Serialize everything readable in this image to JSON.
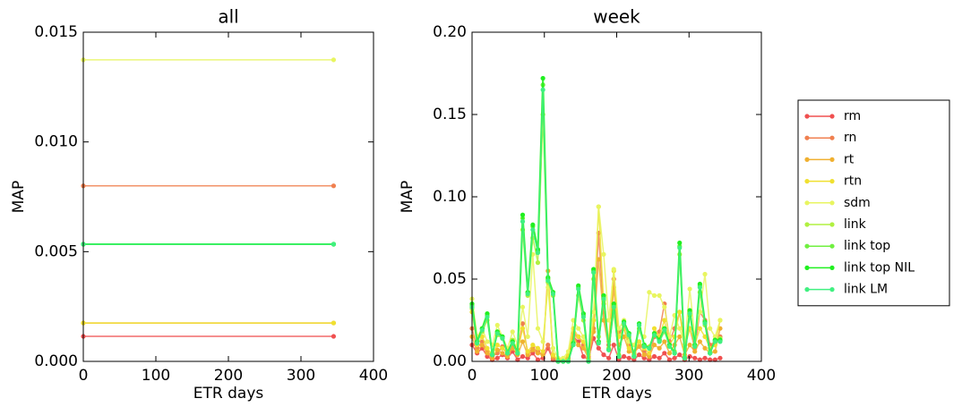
{
  "chart_data": [
    {
      "type": "line",
      "title": "all",
      "x_label": "ETR days",
      "y_label": "MAP",
      "xlim": [
        0,
        400
      ],
      "xticks": [
        0,
        100,
        200,
        300,
        400
      ],
      "ylim": [
        0,
        0.015
      ],
      "yticks": [
        {
          "value": 0,
          "label": "0.000"
        },
        {
          "value": 0.005,
          "label": "0.005"
        },
        {
          "value": 0.01,
          "label": "0.010"
        },
        {
          "value": 0.015,
          "label": "0.015"
        }
      ],
      "x": [
        0,
        345
      ],
      "series": [
        {
          "color": "#f05050",
          "values": [
            0.00114,
            0.00114
          ]
        },
        {
          "color": "#f08050",
          "values": [
            0.008,
            0.008
          ]
        },
        {
          "color": "#f0b030",
          "values": [
            0.00175,
            0.00175
          ]
        },
        {
          "color": "#f0e030",
          "values": [
            0.00175,
            0.00175
          ]
        },
        {
          "color": "#e8f560",
          "values": [
            0.01374,
            0.01374
          ]
        },
        {
          "color": "#b0f040",
          "values": [
            0.00534,
            0.00534
          ]
        },
        {
          "color": "#70f040",
          "values": [
            0.00534,
            0.00534
          ]
        },
        {
          "color": "#20f020",
          "values": [
            0.00534,
            0.00534
          ]
        },
        {
          "color": "#40f080",
          "values": [
            0.00534,
            0.00534
          ]
        }
      ]
    },
    {
      "type": "line",
      "title": "week",
      "x_label": "ETR days",
      "y_label": "MAP",
      "legend": "right",
      "xlim": [
        0,
        400
      ],
      "xticks": [
        0,
        100,
        200,
        300,
        400
      ],
      "ylim": [
        0,
        0.2
      ],
      "yticks": [
        {
          "value": 0,
          "label": "0.00"
        },
        {
          "value": 0.05,
          "label": "0.05"
        },
        {
          "value": 0.1,
          "label": "0.10"
        },
        {
          "value": 0.15,
          "label": "0.15"
        },
        {
          "value": 0.2,
          "label": "0.20"
        }
      ],
      "x": [
        0,
        7,
        14,
        21,
        28,
        35,
        42,
        49,
        56,
        63,
        70,
        77,
        84,
        91,
        98,
        105,
        112,
        119,
        126,
        133,
        140,
        147,
        154,
        161,
        168,
        175,
        182,
        189,
        196,
        203,
        210,
        217,
        224,
        231,
        238,
        245,
        252,
        259,
        266,
        273,
        280,
        287,
        294,
        301,
        308,
        315,
        322,
        329,
        336,
        343
      ],
      "series": [
        {
          "name": "rm",
          "color": "#f05050",
          "values": [
            0.01,
            0.005,
            0.008,
            0.003,
            0.001,
            0.002,
            0.004,
            0.002,
            0.006,
            0.001,
            0.003,
            0.002,
            0.005,
            0.001,
            0.002,
            0.008,
            0.001,
            0.0,
            0.0,
            0.001,
            0.015,
            0.012,
            0.003,
            0.001,
            0.014,
            0.008,
            0.004,
            0.002,
            0.01,
            0.001,
            0.003,
            0.002,
            0.001,
            0.004,
            0.002,
            0.001,
            0.003,
            0.002,
            0.005,
            0.001,
            0.002,
            0.004,
            0.001,
            0.003,
            0.002,
            0.001,
            0.002,
            0.001,
            0.001,
            0.002
          ]
        },
        {
          "name": "rn",
          "color": "#f08050",
          "values": [
            0.02,
            0.008,
            0.012,
            0.006,
            0.003,
            0.005,
            0.009,
            0.004,
            0.01,
            0.007,
            0.023,
            0.005,
            0.008,
            0.006,
            0.004,
            0.01,
            0.002,
            0.0,
            0.001,
            0.002,
            0.017,
            0.015,
            0.01,
            0.003,
            0.02,
            0.078,
            0.03,
            0.01,
            0.05,
            0.018,
            0.02,
            0.01,
            0.004,
            0.012,
            0.006,
            0.003,
            0.015,
            0.018,
            0.035,
            0.012,
            0.02,
            0.03,
            0.01,
            0.02,
            0.008,
            0.03,
            0.025,
            0.01,
            0.012,
            0.015
          ]
        },
        {
          "name": "rt",
          "color": "#f0b030",
          "values": [
            0.015,
            0.006,
            0.01,
            0.005,
            0.002,
            0.007,
            0.005,
            0.003,
            0.008,
            0.004,
            0.012,
            0.004,
            0.007,
            0.005,
            0.004,
            0.055,
            0.003,
            0.001,
            0.0,
            0.003,
            0.015,
            0.01,
            0.008,
            0.002,
            0.018,
            0.062,
            0.025,
            0.008,
            0.045,
            0.01,
            0.015,
            0.006,
            0.005,
            0.009,
            0.004,
            0.003,
            0.01,
            0.008,
            0.012,
            0.005,
            0.01,
            0.015,
            0.004,
            0.01,
            0.006,
            0.012,
            0.008,
            0.005,
            0.006,
            0.02
          ]
        },
        {
          "name": "rtn",
          "color": "#f0e030",
          "values": [
            0.03,
            0.01,
            0.015,
            0.008,
            0.004,
            0.01,
            0.008,
            0.005,
            0.012,
            0.006,
            0.02,
            0.006,
            0.01,
            0.008,
            0.006,
            0.05,
            0.004,
            0.001,
            0.001,
            0.004,
            0.02,
            0.015,
            0.012,
            0.004,
            0.025,
            0.094,
            0.035,
            0.012,
            0.055,
            0.015,
            0.02,
            0.008,
            0.006,
            0.012,
            0.008,
            0.005,
            0.02,
            0.015,
            0.025,
            0.01,
            0.015,
            0.03,
            0.008,
            0.02,
            0.01,
            0.02,
            0.015,
            0.008,
            0.01,
            0.025
          ]
        },
        {
          "name": "sdm",
          "color": "#e8f560",
          "values": [
            0.038,
            0.015,
            0.02,
            0.012,
            0.01,
            0.022,
            0.015,
            0.008,
            0.018,
            0.01,
            0.033,
            0.015,
            0.065,
            0.02,
            0.012,
            0.045,
            0.008,
            0.002,
            0.002,
            0.006,
            0.025,
            0.02,
            0.015,
            0.006,
            0.03,
            0.094,
            0.065,
            0.025,
            0.056,
            0.02,
            0.025,
            0.012,
            0.01,
            0.018,
            0.015,
            0.042,
            0.04,
            0.04,
            0.033,
            0.015,
            0.028,
            0.02,
            0.01,
            0.044,
            0.015,
            0.03,
            0.053,
            0.02,
            0.015,
            0.025
          ]
        },
        {
          "name": "link",
          "color": "#b0f040",
          "values": [
            0.032,
            0.012,
            0.018,
            0.025,
            0.005,
            0.016,
            0.014,
            0.006,
            0.013,
            0.006,
            0.08,
            0.04,
            0.075,
            0.06,
            0.15,
            0.048,
            0.04,
            0.001,
            0.0,
            0.001,
            0.012,
            0.04,
            0.025,
            0.001,
            0.05,
            0.015,
            0.037,
            0.008,
            0.03,
            0.004,
            0.022,
            0.015,
            0.004,
            0.02,
            0.01,
            0.009,
            0.016,
            0.012,
            0.018,
            0.01,
            0.006,
            0.065,
            0.003,
            0.028,
            0.01,
            0.042,
            0.022,
            0.006,
            0.012,
            0.014
          ]
        },
        {
          "name": "link top",
          "color": "#70f040",
          "values": [
            0.034,
            0.012,
            0.02,
            0.028,
            0.004,
            0.018,
            0.015,
            0.005,
            0.012,
            0.005,
            0.087,
            0.042,
            0.082,
            0.067,
            0.168,
            0.05,
            0.042,
            0.0,
            0.0,
            0.0,
            0.011,
            0.045,
            0.028,
            0.0,
            0.055,
            0.012,
            0.039,
            0.007,
            0.034,
            0.003,
            0.024,
            0.017,
            0.003,
            0.022,
            0.01,
            0.008,
            0.017,
            0.013,
            0.02,
            0.01,
            0.005,
            0.07,
            0.002,
            0.03,
            0.01,
            0.046,
            0.024,
            0.005,
            0.013,
            0.013
          ]
        },
        {
          "name": "link top NIL",
          "color": "#20f020",
          "values": [
            0.035,
            0.012,
            0.02,
            0.029,
            0.004,
            0.018,
            0.015,
            0.005,
            0.012,
            0.005,
            0.089,
            0.042,
            0.083,
            0.068,
            0.172,
            0.051,
            0.042,
            0.0,
            0.0,
            0.0,
            0.011,
            0.046,
            0.029,
            0.0,
            0.056,
            0.012,
            0.04,
            0.007,
            0.035,
            0.003,
            0.024,
            0.017,
            0.003,
            0.023,
            0.01,
            0.008,
            0.017,
            0.013,
            0.02,
            0.01,
            0.005,
            0.072,
            0.002,
            0.031,
            0.01,
            0.047,
            0.024,
            0.005,
            0.013,
            0.013
          ]
        },
        {
          "name": "link LM",
          "color": "#40f080",
          "values": [
            0.033,
            0.011,
            0.019,
            0.027,
            0.004,
            0.017,
            0.014,
            0.005,
            0.011,
            0.005,
            0.085,
            0.041,
            0.08,
            0.066,
            0.165,
            0.049,
            0.041,
            0.0,
            0.0,
            0.0,
            0.01,
            0.044,
            0.027,
            0.0,
            0.054,
            0.011,
            0.038,
            0.007,
            0.033,
            0.003,
            0.023,
            0.016,
            0.003,
            0.022,
            0.009,
            0.008,
            0.016,
            0.012,
            0.019,
            0.009,
            0.005,
            0.069,
            0.002,
            0.029,
            0.009,
            0.045,
            0.023,
            0.005,
            0.012,
            0.012
          ]
        }
      ]
    }
  ]
}
